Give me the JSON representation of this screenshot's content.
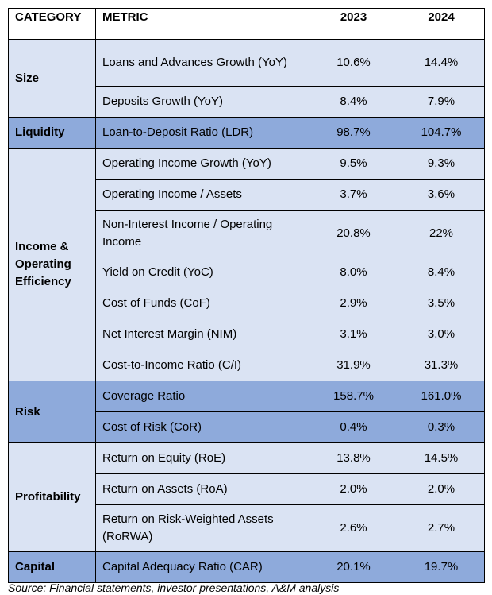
{
  "header": {
    "category": "CATEGORY",
    "metric": "METRIC",
    "year1": "2023",
    "year2": "2024"
  },
  "groups": [
    {
      "category": "Size",
      "shade": "light",
      "rows": [
        {
          "metric": "Loans and Advances Growth (YoY)",
          "v2023": "10.6%",
          "v2024": "14.4%",
          "tall": true
        },
        {
          "metric": "Deposits Growth (YoY)",
          "v2023": "8.4%",
          "v2024": "7.9%"
        }
      ]
    },
    {
      "category": "Liquidity",
      "shade": "dark",
      "rows": [
        {
          "metric": "Loan-to-Deposit Ratio (LDR)",
          "v2023": "98.7%",
          "v2024": "104.7%"
        }
      ]
    },
    {
      "category": "Income & Operating Efficiency",
      "shade": "light",
      "rows": [
        {
          "metric": "Operating Income Growth (YoY)",
          "v2023": "9.5%",
          "v2024": "9.3%"
        },
        {
          "metric": "Operating Income / Assets",
          "v2023": "3.7%",
          "v2024": "3.6%"
        },
        {
          "metric": "Non-Interest Income / Operating Income",
          "v2023": "20.8%",
          "v2024": "22%",
          "tall": true
        },
        {
          "metric": "Yield on Credit (YoC)",
          "v2023": "8.0%",
          "v2024": "8.4%"
        },
        {
          "metric": "Cost of Funds (CoF)",
          "v2023": "2.9%",
          "v2024": "3.5%"
        },
        {
          "metric": "Net Interest Margin (NIM)",
          "v2023": "3.1%",
          "v2024": "3.0%"
        },
        {
          "metric": "Cost-to-Income Ratio (C/I)",
          "v2023": "31.9%",
          "v2024": "31.3%"
        }
      ]
    },
    {
      "category": "Risk",
      "shade": "dark",
      "rows": [
        {
          "metric": "Coverage Ratio",
          "v2023": "158.7%",
          "v2024": "161.0%"
        },
        {
          "metric": "Cost of Risk (CoR)",
          "v2023": "0.4%",
          "v2024": "0.3%"
        }
      ]
    },
    {
      "category": "Profitability",
      "shade": "light",
      "rows": [
        {
          "metric": "Return on Equity (RoE)",
          "v2023": "13.8%",
          "v2024": "14.5%"
        },
        {
          "metric": "Return on Assets (RoA)",
          "v2023": "2.0%",
          "v2024": "2.0%"
        },
        {
          "metric": "Return on Risk-Weighted Assets (RoRWA)",
          "v2023": "2.6%",
          "v2024": "2.7%",
          "tall": true
        }
      ]
    },
    {
      "category": "Capital",
      "shade": "dark",
      "rows": [
        {
          "metric": "Capital Adequacy Ratio (CAR)",
          "v2023": "20.1%",
          "v2024": "19.7%"
        }
      ]
    }
  ],
  "source": "Source: Financial statements, investor presentations, A&M analysis"
}
